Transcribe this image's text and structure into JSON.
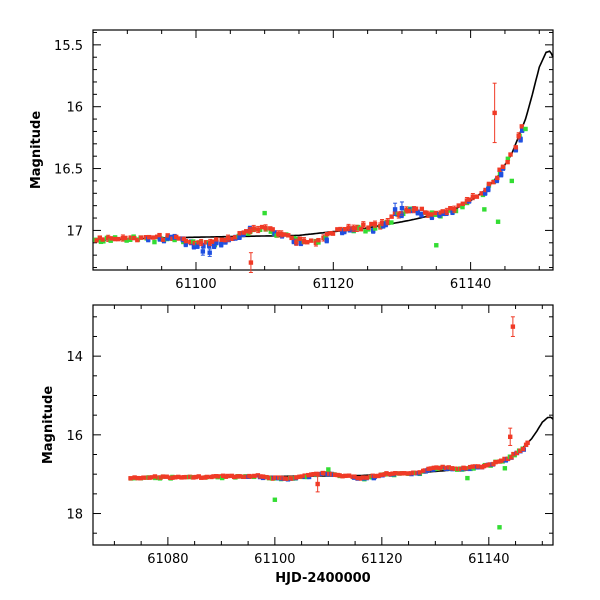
{
  "colors": {
    "red": "#f03a26",
    "blue": "#1f4fe0",
    "green": "#33dd33",
    "model": "#000000"
  },
  "chart_data": [
    {
      "type": "scatter",
      "panel": "top",
      "xlabel": "",
      "ylabel": "Magnitude",
      "xlim": [
        61085,
        61152
      ],
      "ylim": [
        17.32,
        15.38
      ],
      "y_inverted": true,
      "xticks": [
        61100,
        61120,
        61140
      ],
      "yticks": [
        15.5,
        16,
        16.5,
        17
      ],
      "xtick_labels": [
        "61100",
        "61120",
        "61140"
      ],
      "ytick_labels": [
        "15.5",
        "16",
        "16.5",
        "17"
      ],
      "model": {
        "name": "model",
        "x": [
          61085,
          61095,
          61105,
          61115,
          61125,
          61131,
          61135,
          61138,
          61140,
          61142,
          61144,
          61146,
          61148,
          61149,
          61150,
          61151,
          61151.6,
          61152
        ],
        "y": [
          17.08,
          17.06,
          17.05,
          17.04,
          16.98,
          16.92,
          16.87,
          16.82,
          16.76,
          16.68,
          16.56,
          16.38,
          16.1,
          15.9,
          15.68,
          15.56,
          15.55,
          15.6
        ]
      },
      "outliers": [
        {
          "color": "red",
          "x": 61143.5,
          "y": 16.05,
          "err": 0.24
        },
        {
          "color": "red",
          "x": 61108,
          "y": 17.26,
          "err": 0.08
        },
        {
          "color": "green",
          "x": 61110,
          "y": 16.86,
          "err": 0
        },
        {
          "color": "green",
          "x": 61135,
          "y": 17.12,
          "err": 0
        },
        {
          "color": "green",
          "x": 61142,
          "y": 16.83,
          "err": 0
        },
        {
          "color": "green",
          "x": 61144,
          "y": 16.93,
          "err": 0
        },
        {
          "color": "green",
          "x": 61146,
          "y": 16.6,
          "err": 0
        },
        {
          "color": "green",
          "x": 61148,
          "y": 16.18,
          "err": 0
        },
        {
          "color": "blue",
          "x": 61101,
          "y": 17.17,
          "err": 0.03
        },
        {
          "color": "blue",
          "x": 61102,
          "y": 17.18,
          "err": 0.03
        },
        {
          "color": "blue",
          "x": 61129,
          "y": 16.83,
          "err": 0.05
        },
        {
          "color": "blue",
          "x": 61130,
          "y": 16.82,
          "err": 0.05
        }
      ]
    },
    {
      "type": "scatter",
      "panel": "bottom",
      "xlabel": "HJD-2400000",
      "ylabel": "Magnitude",
      "xlim": [
        61066,
        61152
      ],
      "ylim": [
        18.8,
        12.7
      ],
      "y_inverted": true,
      "xticks": [
        61080,
        61100,
        61120,
        61140
      ],
      "yticks": [
        14,
        16,
        18
      ],
      "xtick_labels": [
        "61080",
        "61100",
        "61120",
        "61140"
      ],
      "ytick_labels": [
        "14",
        "16",
        "18"
      ],
      "model": {
        "name": "model",
        "x": [
          61073,
          61085,
          61095,
          61105,
          61115,
          61125,
          61131,
          61135,
          61138,
          61140,
          61142,
          61144,
          61146,
          61148,
          61149,
          61150,
          61151,
          61151.6,
          61152
        ],
        "y": [
          17.1,
          17.08,
          17.06,
          17.05,
          17.04,
          16.98,
          16.92,
          16.87,
          16.82,
          16.76,
          16.68,
          16.56,
          16.38,
          16.1,
          15.9,
          15.68,
          15.56,
          15.55,
          15.6
        ]
      },
      "outliers": [
        {
          "color": "red",
          "x": 61144.5,
          "y": 13.25,
          "err": 0.25
        },
        {
          "color": "red",
          "x": 61144,
          "y": 16.05,
          "err": 0.22
        },
        {
          "color": "red",
          "x": 61108,
          "y": 17.25,
          "err": 0.2
        },
        {
          "color": "green",
          "x": 61100,
          "y": 17.65,
          "err": 0
        },
        {
          "color": "green",
          "x": 61142,
          "y": 18.35,
          "err": 0
        },
        {
          "color": "green",
          "x": 61110,
          "y": 16.88,
          "err": 0
        },
        {
          "color": "green",
          "x": 61136,
          "y": 17.1,
          "err": 0
        },
        {
          "color": "green",
          "x": 61143,
          "y": 16.85,
          "err": 0
        }
      ]
    }
  ]
}
